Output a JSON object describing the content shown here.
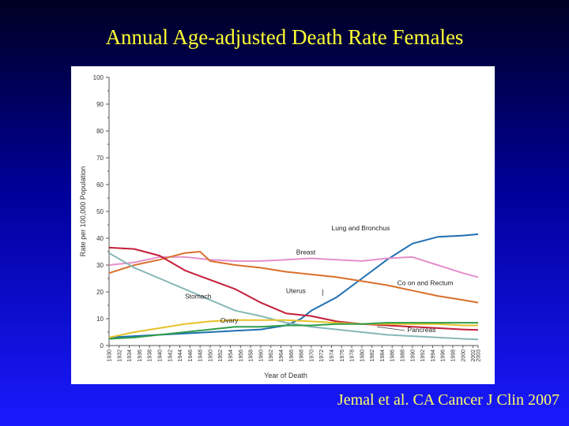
{
  "slide": {
    "title": "Annual Age-adjusted Death Rate Females",
    "citation": "Jemal et al. CA Cancer J Clin 2007"
  },
  "chart_data": {
    "type": "line",
    "xlabel": "Year of Death",
    "ylabel": "Rate per 100,000 Population",
    "xlim": [
      1930,
      2003
    ],
    "ylim": [
      0,
      100
    ],
    "y_ticks": [
      0,
      10,
      20,
      30,
      40,
      50,
      60,
      70,
      80,
      90,
      100
    ],
    "x_tick_labels": [
      "1930",
      "1932",
      "1934",
      "1936",
      "1938",
      "1940",
      "1942",
      "1944",
      "1946",
      "1948",
      "1950",
      "1952",
      "1954",
      "1956",
      "1958",
      "1960",
      "1962",
      "1964",
      "1966",
      "1968",
      "1970",
      "1972",
      "1974",
      "1976",
      "1978",
      "1980",
      "1982",
      "1984",
      "1986",
      "1988",
      "1990",
      "1992",
      "1994",
      "1996",
      "1998",
      "2000",
      "2002",
      "2003"
    ],
    "grid": false,
    "legend": "inline labels",
    "series": [
      {
        "name": "Lung and Bronchus",
        "color": "#1f6fb2",
        "x": [
          1930,
          1940,
          1950,
          1955,
          1960,
          1965,
          1968,
          1970,
          1975,
          1980,
          1985,
          1990,
          1995,
          2000,
          2003
        ],
        "y": [
          3,
          4,
          5,
          5.5,
          6,
          7.5,
          10,
          13,
          18,
          25,
          32,
          38,
          40.5,
          41,
          41.5
        ]
      },
      {
        "name": "Breast",
        "color": "#e58fca",
        "x": [
          1930,
          1935,
          1940,
          1945,
          1950,
          1955,
          1960,
          1965,
          1970,
          1975,
          1980,
          1985,
          1990,
          1995,
          2000,
          2003
        ],
        "y": [
          30,
          31,
          33,
          33,
          32,
          31.5,
          31.5,
          32,
          32.5,
          32,
          31.5,
          32.5,
          33,
          30,
          27,
          25.5
        ]
      },
      {
        "name": "Colon and Rectum",
        "color": "#d9702b",
        "x": [
          1930,
          1935,
          1940,
          1945,
          1948,
          1950,
          1955,
          1960,
          1965,
          1970,
          1975,
          1980,
          1985,
          1990,
          1995,
          2000,
          2003
        ],
        "y": [
          27,
          30,
          32,
          34.5,
          35,
          31.5,
          30,
          29,
          27.5,
          26.5,
          25.5,
          24,
          22.5,
          20.5,
          18.5,
          17,
          16
        ]
      },
      {
        "name": "Uterus",
        "color": "#c41e3a",
        "x": [
          1930,
          1935,
          1940,
          1945,
          1950,
          1955,
          1960,
          1965,
          1970,
          1975,
          1980,
          1985,
          1990,
          1995,
          2000,
          2003
        ],
        "y": [
          36.5,
          36,
          33.5,
          28,
          24.5,
          21,
          16,
          12,
          11,
          9,
          8,
          7.5,
          7,
          6.5,
          6,
          5.8
        ]
      },
      {
        "name": "Stomach",
        "color": "#86b8b8",
        "x": [
          1930,
          1935,
          1940,
          1945,
          1950,
          1955,
          1960,
          1965,
          1970,
          1975,
          1980,
          1985,
          1990,
          1995,
          2000,
          2003
        ],
        "y": [
          34.5,
          29,
          25,
          21,
          17,
          13,
          11,
          8.5,
          7,
          6,
          5,
          4,
          3.5,
          3,
          2.5,
          2.3
        ]
      },
      {
        "name": "Ovary",
        "color": "#e6c229",
        "x": [
          1930,
          1935,
          1940,
          1945,
          1950,
          1955,
          1960,
          1965,
          1970,
          1975,
          1980,
          1985,
          1990,
          1995,
          2000,
          2003
        ],
        "y": [
          3,
          5,
          6.5,
          8,
          9,
          9.5,
          9.5,
          9.5,
          9,
          8.5,
          8,
          8,
          8,
          8,
          7.5,
          7.5
        ]
      },
      {
        "name": "Pancreas",
        "color": "#2e9e4a",
        "x": [
          1930,
          1935,
          1940,
          1945,
          1950,
          1955,
          1960,
          1965,
          1970,
          1975,
          1980,
          1985,
          1990,
          1995,
          2000,
          2003
        ],
        "y": [
          2.5,
          3,
          4,
          5,
          6,
          7,
          7,
          7.5,
          7.5,
          8,
          8,
          8.5,
          8.5,
          8.5,
          8.5,
          8.5
        ]
      }
    ],
    "annotations": [
      {
        "text": "Lung and Bronchus",
        "x": 1974,
        "y": 43
      },
      {
        "text": "Breast",
        "x": 1967,
        "y": 34
      },
      {
        "text": "Co on and Rectum",
        "x": 1987,
        "y": 22.5
      },
      {
        "text": "Uterus",
        "x": 1965,
        "y": 19.5
      },
      {
        "text": "Stomach",
        "x": 1945,
        "y": 17.5
      },
      {
        "text": "Ovary",
        "x": 1952,
        "y": 8.5
      },
      {
        "text": "Pancreas",
        "x": 1989,
        "y": 5
      }
    ]
  }
}
